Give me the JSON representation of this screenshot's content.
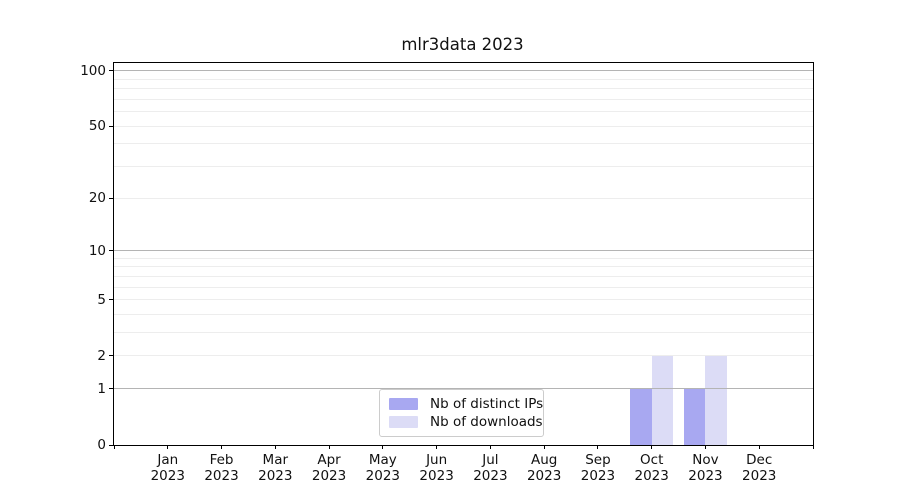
{
  "title": "mlr3data 2023",
  "legend": {
    "entries": [
      {
        "label": "Nb of distinct IPs",
        "color": "#a8a8f1"
      },
      {
        "label": "Nb of downloads",
        "color": "#dcdcf6"
      }
    ]
  },
  "chart_data": {
    "type": "bar",
    "title": "mlr3data 2023",
    "categories": [
      "Jan 2023",
      "Feb 2023",
      "Mar 2023",
      "Apr 2023",
      "May 2023",
      "Jun 2023",
      "Jul 2023",
      "Aug 2023",
      "Sep 2023",
      "Oct 2023",
      "Nov 2023",
      "Dec 2023"
    ],
    "series": [
      {
        "name": "Nb of distinct IPs",
        "color": "#a8a8f1",
        "values": [
          0,
          0,
          0,
          0,
          0,
          0,
          0,
          0,
          0,
          1,
          1,
          0
        ]
      },
      {
        "name": "Nb of downloads",
        "color": "#dcdcf6",
        "values": [
          0,
          0,
          0,
          0,
          0,
          0,
          0,
          0,
          0,
          2,
          2,
          0
        ]
      }
    ],
    "yscale": "log1p",
    "yticks": [
      0,
      1,
      2,
      5,
      10,
      20,
      50,
      100
    ],
    "ylim": [
      0,
      110
    ],
    "grid": {
      "on": true,
      "major_values": [
        1,
        10,
        100
      ],
      "minor_values": [
        2,
        3,
        4,
        5,
        6,
        7,
        8,
        9,
        20,
        30,
        40,
        50,
        60,
        70,
        80,
        90
      ],
      "major_color": "#b4b4b4",
      "minor_color": "#ededed"
    },
    "legend_position": "lower center"
  }
}
